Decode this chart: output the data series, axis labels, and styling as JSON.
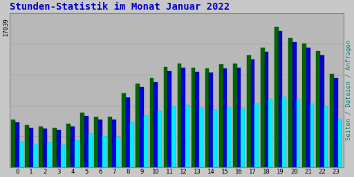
{
  "title": "Stunden-Statistik im Monat Januar 2022",
  "title_color": "#0000cc",
  "title_fontsize": 10,
  "ylabel_right": "Seiten / Dateien / Anfragen",
  "ylabel_right_color": "#008080",
  "xlabel_ticks": [
    0,
    1,
    2,
    3,
    4,
    5,
    6,
    7,
    8,
    9,
    10,
    11,
    12,
    13,
    14,
    15,
    16,
    17,
    18,
    19,
    20,
    21,
    22,
    23
  ],
  "ytick_label": "17039",
  "background_color": "#c8c8c8",
  "plot_bg_color": "#b8b8b8",
  "grid_color": "#a8a8a8",
  "bar_width": 0.29,
  "colors": {
    "seiten": "#006600",
    "dateien": "#0000dd",
    "anfragen": "#00eeff"
  },
  "seiten": [
    5800,
    5100,
    5000,
    4800,
    5300,
    6600,
    6100,
    6100,
    9000,
    10200,
    10800,
    12200,
    12600,
    12100,
    12000,
    12500,
    12600,
    13600,
    14500,
    17039,
    15700,
    15000,
    14100,
    11300
  ],
  "dateien": [
    5500,
    4800,
    4700,
    4500,
    5000,
    6200,
    5800,
    5800,
    8500,
    9700,
    10300,
    11700,
    12100,
    11600,
    11500,
    12000,
    12100,
    13100,
    14000,
    16500,
    15200,
    14500,
    13600,
    10800
  ],
  "anfragen": [
    3100,
    2800,
    3000,
    2700,
    3300,
    4100,
    3800,
    3700,
    5500,
    6300,
    6900,
    7400,
    7600,
    7200,
    7000,
    7200,
    7100,
    7700,
    8300,
    8600,
    8200,
    7700,
    7400,
    5900
  ]
}
